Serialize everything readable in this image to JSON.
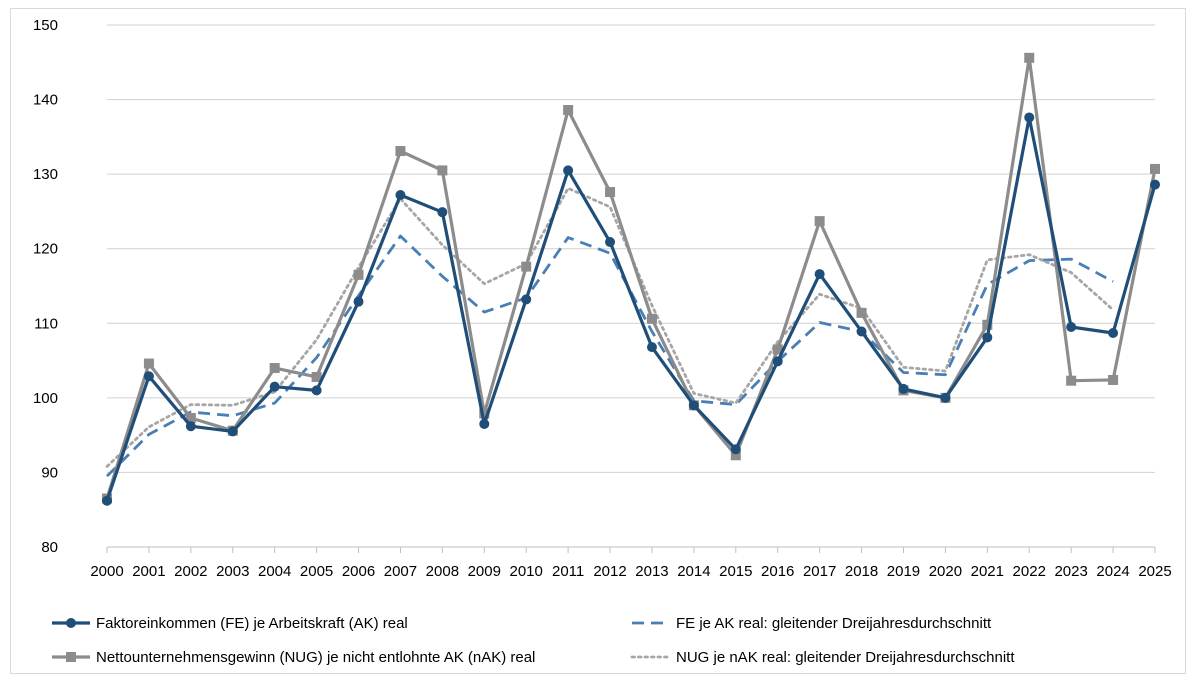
{
  "chart_data": {
    "type": "line",
    "title": "",
    "xlabel": "",
    "ylabel": "",
    "ylim": [
      80,
      150
    ],
    "yticks": [
      80,
      90,
      100,
      110,
      120,
      130,
      140,
      150
    ],
    "grid": "horizontal",
    "legend_position": "bottom",
    "categories": [
      "2000",
      "2001",
      "2002",
      "2003",
      "2004",
      "2005",
      "2006",
      "2007",
      "2008",
      "2009",
      "2010",
      "2011",
      "2012",
      "2013",
      "2014",
      "2015",
      "2016",
      "2017",
      "2018",
      "2019",
      "2020",
      "2021",
      "2022",
      "2023",
      "2024",
      "2025"
    ],
    "series": [
      {
        "name": "Faktoreinkommen (FE) je Arbeitskraft (AK) real",
        "color": "#1f4e79",
        "style": "solid",
        "marker": "circle",
        "values": [
          86.2,
          102.9,
          96.2,
          95.5,
          101.5,
          101.0,
          112.9,
          127.2,
          124.9,
          96.5,
          113.2,
          130.5,
          120.9,
          106.8,
          99.0,
          93.1,
          104.9,
          116.6,
          108.9,
          101.2,
          100.0,
          108.1,
          137.6,
          109.5,
          108.7,
          128.6
        ]
      },
      {
        "name": "FE je AK real: gleitender Dreijahresdurchschnitt",
        "color": "#4a7fb5",
        "style": "dashed",
        "marker": "none",
        "values": [
          89.5,
          95.1,
          98.1,
          97.6,
          99.3,
          105.4,
          113.7,
          121.7,
          116.3,
          111.5,
          113.4,
          121.5,
          119.4,
          108.9,
          99.6,
          99.1,
          104.9,
          110.1,
          108.9,
          103.4,
          103.1,
          115.2,
          118.4,
          118.6,
          115.6,
          null
        ]
      },
      {
        "name": "Nettounternehmensgewinn (NUG) je nicht entlohnte AK (nAK) real",
        "color": "#8c8c8c",
        "style": "solid",
        "marker": "square",
        "values": [
          86.5,
          104.6,
          97.3,
          95.6,
          104.0,
          102.8,
          116.5,
          133.1,
          130.5,
          97.9,
          117.6,
          138.6,
          127.6,
          110.6,
          99.0,
          92.3,
          106.5,
          123.7,
          111.4,
          101.0,
          100.0,
          109.8,
          145.6,
          102.3,
          102.4,
          130.7
        ]
      },
      {
        "name": "NUG je nAK real: gleitender Dreijahresdurchschnitt",
        "color": "#a6a6a6",
        "style": "dotted",
        "marker": "none",
        "values": [
          90.8,
          96.1,
          99.1,
          99.0,
          100.8,
          107.8,
          117.5,
          126.7,
          120.5,
          115.3,
          118.0,
          128.1,
          125.6,
          112.4,
          100.6,
          99.3,
          107.5,
          113.9,
          112.0,
          104.1,
          103.6,
          118.5,
          119.2,
          116.8,
          111.8,
          null
        ]
      }
    ]
  }
}
